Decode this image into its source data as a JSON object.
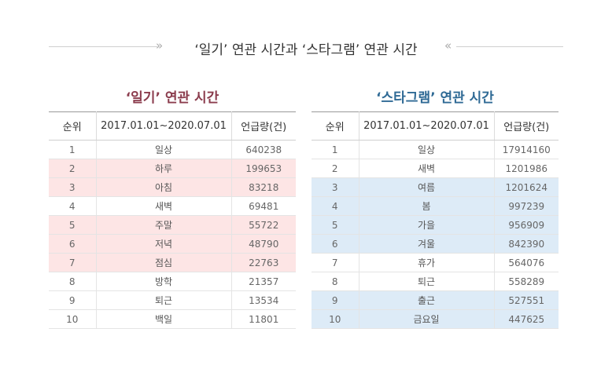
{
  "header": {
    "title": "‘일기’ 연관 시간과 ‘스타그램’ 연관 시간",
    "chev_left": "»",
    "chev_right": "«"
  },
  "columns": [
    "순위",
    "2017.01.01~2020.07.01",
    "언급량(건)"
  ],
  "tables": [
    {
      "title": "‘일기’ 연관 시간",
      "highlight_color": "#fde5e5",
      "rows": [
        {
          "rank": "1",
          "term": "일상",
          "count": "640238",
          "highlight": false
        },
        {
          "rank": "2",
          "term": "하루",
          "count": "199653",
          "highlight": true
        },
        {
          "rank": "3",
          "term": "아침",
          "count": "83218",
          "highlight": true
        },
        {
          "rank": "4",
          "term": "새벽",
          "count": "69481",
          "highlight": false
        },
        {
          "rank": "5",
          "term": "주말",
          "count": "55722",
          "highlight": true
        },
        {
          "rank": "6",
          "term": "저녁",
          "count": "48790",
          "highlight": true
        },
        {
          "rank": "7",
          "term": "점심",
          "count": "22763",
          "highlight": true
        },
        {
          "rank": "8",
          "term": "방학",
          "count": "21357",
          "highlight": false
        },
        {
          "rank": "9",
          "term": "퇴근",
          "count": "13534",
          "highlight": false
        },
        {
          "rank": "10",
          "term": "백일",
          "count": "11801",
          "highlight": false
        }
      ]
    },
    {
      "title": "‘스타그램’ 연관 시간",
      "highlight_color": "#ddebf7",
      "rows": [
        {
          "rank": "1",
          "term": "일상",
          "count": "17914160",
          "highlight": false
        },
        {
          "rank": "2",
          "term": "새벽",
          "count": "1201986",
          "highlight": false
        },
        {
          "rank": "3",
          "term": "여름",
          "count": "1201624",
          "highlight": true
        },
        {
          "rank": "4",
          "term": "봄",
          "count": "997239",
          "highlight": true
        },
        {
          "rank": "5",
          "term": "가을",
          "count": "956909",
          "highlight": true
        },
        {
          "rank": "6",
          "term": "겨울",
          "count": "842390",
          "highlight": true
        },
        {
          "rank": "7",
          "term": "휴가",
          "count": "564076",
          "highlight": false
        },
        {
          "rank": "8",
          "term": "퇴근",
          "count": "558289",
          "highlight": false
        },
        {
          "rank": "9",
          "term": "출근",
          "count": "527551",
          "highlight": true
        },
        {
          "rank": "10",
          "term": "금요일",
          "count": "447625",
          "highlight": true
        }
      ]
    }
  ]
}
